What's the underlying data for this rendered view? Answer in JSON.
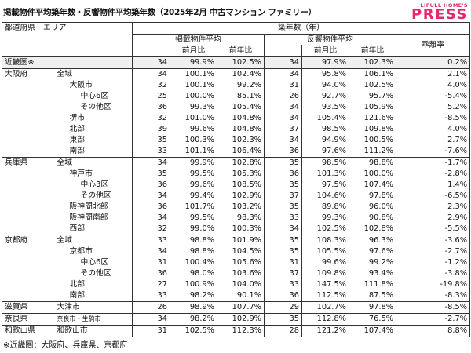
{
  "title": "掲載物件平均築年数・反響物件平均築年数（2025年2月 中古マンション ファミリー）",
  "logo": {
    "small": "LIFULL HOME'S",
    "big": "PRESS"
  },
  "header": {
    "area": "都道府県　エリア",
    "group": "築年数（年）",
    "listing": "掲載物件平均",
    "response": "反響物件平均",
    "gap": "乖離率",
    "mom": "前月比",
    "yoy": "前年比"
  },
  "rows": [
    {
      "pref": "近畿圏※",
      "area": "",
      "level": 0,
      "summary": true,
      "v": [
        "34",
        "99.9%",
        "102.5%",
        "34",
        "97.9%",
        "102.3%",
        "0.2%"
      ]
    },
    {
      "pref": "大阪府",
      "area": "全域",
      "level": 0,
      "v": [
        "34",
        "100.1%",
        "102.4%",
        "34",
        "95.8%",
        "106.1%",
        "2.1%"
      ]
    },
    {
      "pref": "",
      "area": "大阪市",
      "level": 1,
      "v": [
        "32",
        "100.1%",
        "99.2%",
        "31",
        "94.0%",
        "102.5%",
        "4.0%"
      ]
    },
    {
      "pref": "",
      "area": "中心6区",
      "level": 2,
      "v": [
        "25",
        "100.0%",
        "85.1%",
        "26",
        "92.7%",
        "95.7%",
        "-5.4%"
      ]
    },
    {
      "pref": "",
      "area": "その他区",
      "level": 2,
      "v": [
        "36",
        "99.3%",
        "105.4%",
        "34",
        "93.5%",
        "105.9%",
        "5.2%"
      ]
    },
    {
      "pref": "",
      "area": "堺市",
      "level": 1,
      "v": [
        "32",
        "101.0%",
        "104.8%",
        "34",
        "105.4%",
        "121.6%",
        "-8.5%"
      ]
    },
    {
      "pref": "",
      "area": "北部",
      "level": 1,
      "v": [
        "39",
        "99.6%",
        "104.8%",
        "37",
        "98.5%",
        "109.8%",
        "4.0%"
      ]
    },
    {
      "pref": "",
      "area": "東部",
      "level": 1,
      "v": [
        "35",
        "100.3%",
        "102.3%",
        "34",
        "94.9%",
        "100.5%",
        "2.7%"
      ]
    },
    {
      "pref": "",
      "area": "南部",
      "level": 1,
      "v": [
        "33",
        "101.1%",
        "106.4%",
        "36",
        "97.6%",
        "111.2%",
        "-7.6%"
      ]
    },
    {
      "pref": "兵庫県",
      "area": "全域",
      "level": 0,
      "v": [
        "34",
        "99.9%",
        "102.8%",
        "35",
        "98.5%",
        "98.8%",
        "-1.7%"
      ]
    },
    {
      "pref": "",
      "area": "神戸市",
      "level": 1,
      "v": [
        "35",
        "99.5%",
        "105.3%",
        "36",
        "101.3%",
        "100.0%",
        "-2.8%"
      ]
    },
    {
      "pref": "",
      "area": "中心3区",
      "level": 2,
      "v": [
        "36",
        "99.6%",
        "108.5%",
        "35",
        "97.5%",
        "107.4%",
        "1.4%"
      ]
    },
    {
      "pref": "",
      "area": "その他区",
      "level": 2,
      "v": [
        "34",
        "99.4%",
        "102.9%",
        "37",
        "104.6%",
        "97.8%",
        "-6.5%"
      ]
    },
    {
      "pref": "",
      "area": "阪神間北部",
      "level": 1,
      "v": [
        "36",
        "101.7%",
        "103.2%",
        "35",
        "89.8%",
        "96.0%",
        "2.3%"
      ]
    },
    {
      "pref": "",
      "area": "阪神間南部",
      "level": 1,
      "v": [
        "34",
        "99.5%",
        "98.3%",
        "33",
        "99.3%",
        "90.8%",
        "2.9%"
      ]
    },
    {
      "pref": "",
      "area": "西部",
      "level": 1,
      "v": [
        "32",
        "99.0%",
        "100.3%",
        "34",
        "102.5%",
        "102.8%",
        "-5.5%"
      ]
    },
    {
      "pref": "京都府",
      "area": "全域",
      "level": 0,
      "v": [
        "33",
        "98.8%",
        "101.9%",
        "35",
        "108.3%",
        "96.3%",
        "-3.6%"
      ]
    },
    {
      "pref": "",
      "area": "京都市",
      "level": 1,
      "v": [
        "34",
        "98.8%",
        "104.5%",
        "35",
        "105.5%",
        "97.6%",
        "-2.7%"
      ]
    },
    {
      "pref": "",
      "area": "中心6区",
      "level": 2,
      "v": [
        "31",
        "100.4%",
        "105.6%",
        "31",
        "99.6%",
        "99.2%",
        "-1.2%"
      ]
    },
    {
      "pref": "",
      "area": "その他区",
      "level": 2,
      "v": [
        "36",
        "98.0%",
        "103.6%",
        "37",
        "109.8%",
        "93.4%",
        "-3.8%"
      ]
    },
    {
      "pref": "",
      "area": "北部",
      "level": 1,
      "v": [
        "27",
        "100.9%",
        "104.0%",
        "33",
        "147.5%",
        "111.8%",
        "-19.8%"
      ]
    },
    {
      "pref": "",
      "area": "南部",
      "level": 1,
      "v": [
        "33",
        "98.2%",
        "90.1%",
        "36",
        "112.5%",
        "87.5%",
        "-8.3%"
      ]
    },
    {
      "pref": "滋賀県",
      "area": "大津市",
      "level": 0,
      "v": [
        "26",
        "98.9%",
        "107.7%",
        "29",
        "102.7%",
        "97.8%",
        "-8.5%"
      ]
    },
    {
      "pref": "奈良県",
      "area": "奈良市・生駒市",
      "level": 0,
      "small": true,
      "v": [
        "34",
        "98.2%",
        "102.9%",
        "35",
        "112.8%",
        "76.5%",
        "-2.7%"
      ]
    },
    {
      "pref": "和歌山県",
      "area": "和歌山市",
      "level": 0,
      "v": [
        "31",
        "102.5%",
        "112.3%",
        "28",
        "121.2%",
        "107.4%",
        "8.8%"
      ]
    }
  ],
  "footnote": "※近畿圏：大阪府、兵庫県、京都府"
}
